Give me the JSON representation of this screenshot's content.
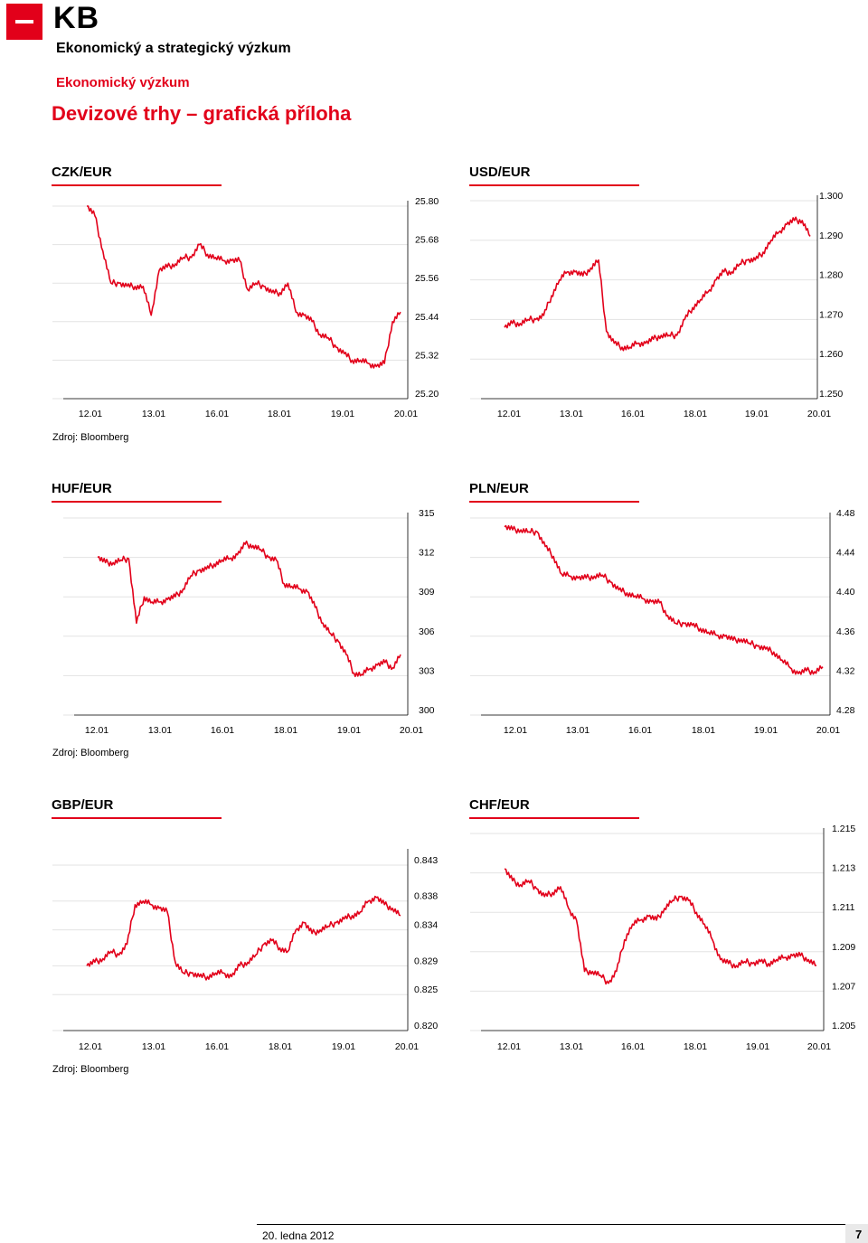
{
  "header": {
    "logo_text": "KB",
    "line1": "Ekonomický a strategický výzkum",
    "line2": "Ekonomický výzkum",
    "title": "Devizové trhy – grafická příloha"
  },
  "sources": [
    "Zdroj: Bloomberg",
    "Zdroj: Bloomberg",
    "Zdroj: Bloomberg"
  ],
  "footer": {
    "date": "20. ledna 2012",
    "page": "7"
  },
  "colors": {
    "accent": "#e2001a",
    "series": "#e2001a"
  },
  "chart_data": [
    {
      "type": "line",
      "title": "CZK/EUR",
      "x_ticks": [
        "12.01",
        "13.01",
        "16.01",
        "18.01",
        "19.01",
        "20.01"
      ],
      "y_ticks": [
        "25.80",
        "25.68",
        "25.56",
        "25.44",
        "25.32",
        "25.20"
      ],
      "ylim": [
        25.2,
        25.8
      ],
      "series": [
        {
          "values": [
            25.8,
            25.77,
            25.66,
            25.56,
            25.56,
            25.55,
            25.55,
            25.55,
            25.46,
            25.6,
            25.61,
            25.62,
            25.64,
            25.64,
            25.68,
            25.65,
            25.64,
            25.63,
            25.63,
            25.63,
            25.54,
            25.56,
            25.55,
            25.53,
            25.53,
            25.56,
            25.47,
            25.46,
            25.44,
            25.4,
            25.39,
            25.36,
            25.34,
            25.32,
            25.32,
            25.31,
            25.3,
            25.31,
            25.44,
            25.47
          ]
        }
      ]
    },
    {
      "type": "line",
      "title": "USD/EUR",
      "x_ticks": [
        "12.01",
        "13.01",
        "16.01",
        "18.01",
        "19.01",
        "20.01"
      ],
      "y_ticks": [
        "1.300",
        "1.290",
        "1.280",
        "1.270",
        "1.260",
        "1.250"
      ],
      "ylim": [
        1.25,
        1.3
      ],
      "series": [
        {
          "values": [
            1.268,
            1.269,
            1.269,
            1.27,
            1.27,
            1.271,
            1.276,
            1.28,
            1.282,
            1.282,
            1.281,
            1.283,
            1.285,
            1.267,
            1.264,
            1.263,
            1.263,
            1.264,
            1.264,
            1.265,
            1.266,
            1.266,
            1.266,
            1.27,
            1.273,
            1.275,
            1.277,
            1.28,
            1.282,
            1.282,
            1.284,
            1.285,
            1.285,
            1.287,
            1.29,
            1.292,
            1.294,
            1.295,
            1.295,
            1.291
          ]
        }
      ]
    },
    {
      "type": "line",
      "title": "HUF/EUR",
      "x_ticks": [
        "12.01",
        "13.01",
        "16.01",
        "18.01",
        "19.01",
        "20.01"
      ],
      "y_ticks": [
        "315",
        "312",
        "309",
        "306",
        "303",
        "300"
      ],
      "ylim": [
        300,
        315
      ],
      "series": [
        {
          "values": [
            312.0,
            311.6,
            311.6,
            311.8,
            311.9,
            307.0,
            309.0,
            308.6,
            308.6,
            308.8,
            309.0,
            309.6,
            310.6,
            311.0,
            311.1,
            311.5,
            311.8,
            311.9,
            312.2,
            313.0,
            312.9,
            312.6,
            312.0,
            311.8,
            310.0,
            309.8,
            309.6,
            309.4,
            308.2,
            307.0,
            306.2,
            305.6,
            304.6,
            303.2,
            303.1,
            303.5,
            303.8,
            304.0,
            303.6,
            304.6
          ]
        }
      ]
    },
    {
      "type": "line",
      "title": "PLN/EUR",
      "x_ticks": [
        "12.01",
        "13.01",
        "16.01",
        "18.01",
        "19.01",
        "20.01"
      ],
      "y_ticks": [
        "4.48",
        "4.44",
        "4.40",
        "4.36",
        "4.32",
        "4.28"
      ],
      "ylim": [
        4.28,
        4.48
      ],
      "series": [
        {
          "values": [
            4.471,
            4.468,
            4.468,
            4.466,
            4.466,
            4.451,
            4.441,
            4.423,
            4.421,
            4.419,
            4.419,
            4.421,
            4.422,
            4.415,
            4.407,
            4.404,
            4.401,
            4.398,
            4.395,
            4.394,
            4.381,
            4.373,
            4.373,
            4.371,
            4.368,
            4.364,
            4.361,
            4.36,
            4.356,
            4.357,
            4.353,
            4.35,
            4.347,
            4.344,
            4.336,
            4.328,
            4.322,
            4.325,
            4.324,
            4.329
          ]
        }
      ]
    },
    {
      "type": "line",
      "title": "GBP/EUR",
      "x_ticks": [
        "12.01",
        "13.01",
        "16.01",
        "18.01",
        "19.01",
        "20.01"
      ],
      "y_ticks": [
        "0.843",
        "0.838",
        "0.834",
        "0.829",
        "0.825",
        "0.820"
      ],
      "ylim": [
        0.82,
        0.8445
      ],
      "series": [
        {
          "values": [
            0.829,
            0.8295,
            0.83,
            0.831,
            0.8305,
            0.832,
            0.8375,
            0.838,
            0.8375,
            0.837,
            0.8365,
            0.8295,
            0.828,
            0.828,
            0.8275,
            0.8275,
            0.828,
            0.828,
            0.8275,
            0.829,
            0.8295,
            0.8305,
            0.832,
            0.8325,
            0.8315,
            0.831,
            0.834,
            0.835,
            0.8335,
            0.834,
            0.8345,
            0.835,
            0.8355,
            0.836,
            0.8365,
            0.838,
            0.8385,
            0.8375,
            0.837,
            0.836
          ]
        }
      ]
    },
    {
      "type": "line",
      "title": "CHF/EUR",
      "x_ticks": [
        "12.01",
        "13.01",
        "16.01",
        "18.01",
        "19.01",
        "20.01"
      ],
      "y_ticks": [
        "1.215",
        "1.213",
        "1.211",
        "1.209",
        "1.207",
        "1.205"
      ],
      "ylim": [
        1.205,
        1.215
      ],
      "series": [
        {
          "values": [
            1.2132,
            1.2126,
            1.2124,
            1.2126,
            1.2122,
            1.2118,
            1.212,
            1.2123,
            1.2112,
            1.2106,
            1.208,
            1.208,
            1.2078,
            1.2074,
            1.208,
            1.2096,
            1.2104,
            1.2106,
            1.2108,
            1.2106,
            1.2112,
            1.2116,
            1.2118,
            1.2116,
            1.211,
            1.2104,
            1.2096,
            1.2086,
            1.2084,
            1.2083,
            1.2085,
            1.2084,
            1.2085,
            1.2084,
            1.2086,
            1.2087,
            1.2088,
            1.2088,
            1.2086,
            1.2083
          ]
        }
      ]
    }
  ]
}
